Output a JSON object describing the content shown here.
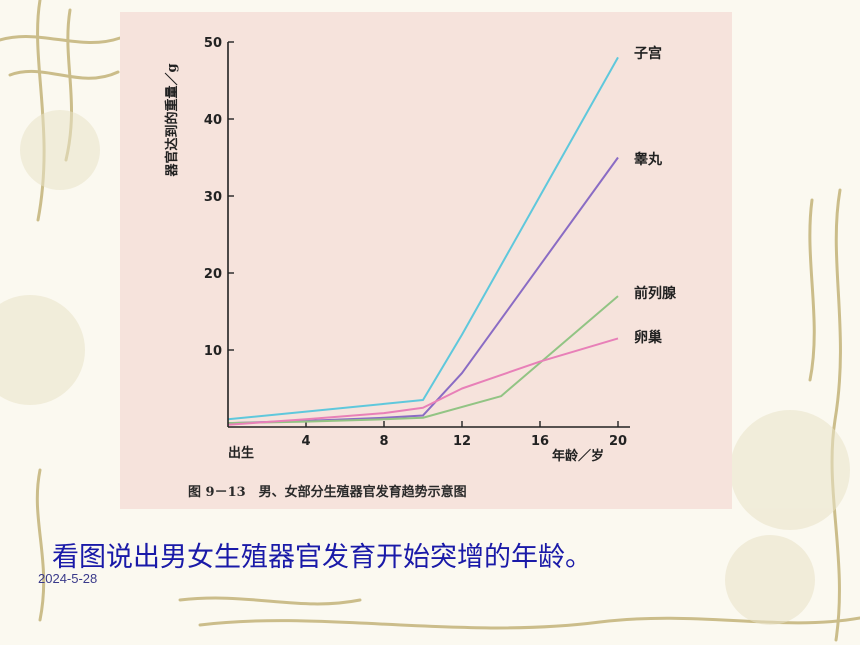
{
  "slide": {
    "question": "看图说出男女生殖器官发育开始突增的年龄。",
    "date": "2024-5-28"
  },
  "colors": {
    "background": "#fbf9f0",
    "figure_bg": "#f6e3dc",
    "vine": "#c8ba86",
    "question_text": "#1a1aa8"
  },
  "chart_data": {
    "type": "line",
    "title": "图 9－13　男、女部分生殖器官发育趋势示意图",
    "xlabel": "年龄／岁",
    "ylabel": "器官达到的重量／g",
    "x_start_label": "出生",
    "x_ticks": [
      4,
      8,
      12,
      16,
      20
    ],
    "y_ticks": [
      10,
      20,
      30,
      40,
      50
    ],
    "xlim": [
      0,
      20
    ],
    "ylim": [
      0,
      50
    ],
    "series": [
      {
        "name": "子宫",
        "color": "#5fc8dc",
        "x": [
          0,
          4,
          8,
          10,
          12,
          16,
          20
        ],
        "y": [
          1,
          2,
          3,
          3.5,
          12,
          30,
          48
        ]
      },
      {
        "name": "睾丸",
        "color": "#8a6cc4",
        "x": [
          0,
          4,
          8,
          10,
          12,
          16,
          20
        ],
        "y": [
          0.5,
          0.8,
          1.2,
          1.5,
          7,
          21,
          35
        ]
      },
      {
        "name": "前列腺",
        "color": "#92c484",
        "x": [
          0,
          4,
          8,
          10,
          14,
          20
        ],
        "y": [
          0.5,
          0.7,
          1,
          1.2,
          4,
          17
        ]
      },
      {
        "name": "卵巢",
        "color": "#e880b8",
        "x": [
          0,
          4,
          8,
          10,
          12,
          16,
          20
        ],
        "y": [
          0.3,
          1,
          1.8,
          2.5,
          5,
          8.5,
          11.5
        ]
      }
    ]
  }
}
